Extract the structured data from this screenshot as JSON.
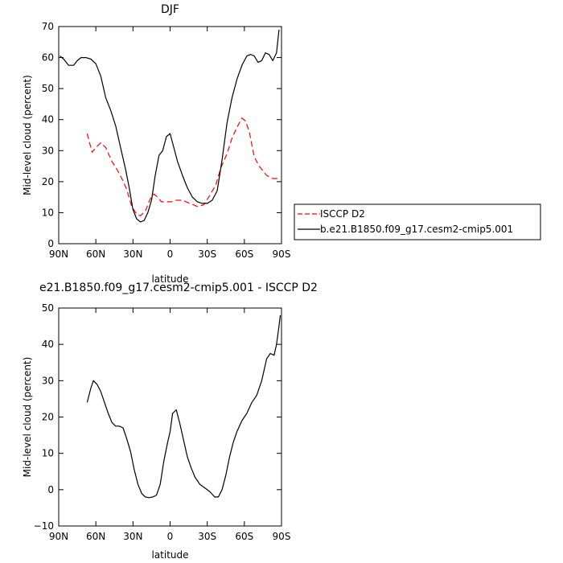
{
  "chart_data": [
    {
      "type": "line",
      "title": "DJF",
      "xlabel": "latitude",
      "ylabel": "Mid-level cloud (percent)",
      "xlim": [
        90,
        -90
      ],
      "ylim": [
        0,
        70
      ],
      "xticks": [
        90,
        60,
        30,
        0,
        -30,
        -60,
        -90
      ],
      "xtick_labels": [
        "90N",
        "60N",
        "30N",
        "0",
        "30S",
        "60S",
        "90S"
      ],
      "yticks": [
        0,
        10,
        20,
        30,
        40,
        50,
        60,
        70
      ],
      "ytick_labels": [
        "0",
        "10",
        "20",
        "30",
        "40",
        "50",
        "60",
        "70"
      ],
      "legend": "right",
      "series": [
        {
          "name": "ISCCP D2",
          "color": "#ff0000",
          "dash": "dashed",
          "x": [
            67,
            63,
            60,
            56,
            52,
            47,
            43,
            39,
            35,
            31,
            27,
            24,
            20,
            16,
            13,
            10,
            7,
            4,
            1,
            -1,
            -5,
            -10,
            -16,
            -22,
            -27,
            -32,
            -37,
            -41,
            -46,
            -50,
            -54,
            -58,
            -61,
            -64,
            -68,
            -72,
            -78,
            -83,
            -88
          ],
          "y": [
            35.5,
            29.5,
            31,
            32.5,
            31,
            26.5,
            24,
            21,
            17.5,
            12,
            9.5,
            9,
            10.5,
            14.5,
            16,
            15,
            13.5,
            13.5,
            13.5,
            13.5,
            14,
            14,
            13,
            12,
            12.5,
            15.5,
            19,
            24.5,
            29,
            34,
            37.5,
            40.5,
            39.5,
            36,
            28,
            25,
            22,
            21,
            21
          ]
        },
        {
          "name": "b.e21.B1850.f09_g17.cesm2-cmip5.001",
          "color": "#000000",
          "dash": "solid",
          "x": [
            89,
            86,
            82,
            78,
            75,
            72,
            68,
            64,
            60,
            56,
            52,
            48,
            44,
            40,
            36,
            33,
            30,
            27,
            24,
            21,
            18,
            15,
            12,
            9,
            6,
            3,
            0,
            -3,
            -6,
            -10,
            -14,
            -18,
            -22,
            -26,
            -30,
            -34,
            -38,
            -42,
            -46,
            -50,
            -54,
            -58,
            -62,
            -65,
            -68,
            -71,
            -74,
            -77,
            -80,
            -83,
            -86,
            -88
          ],
          "y": [
            60.5,
            59.5,
            57.5,
            57.5,
            59,
            60,
            60,
            59.5,
            58,
            54,
            47,
            43,
            38,
            31,
            24,
            18,
            11,
            8,
            7,
            7.5,
            10,
            14,
            22,
            28.5,
            30,
            34.5,
            35.5,
            31,
            26.5,
            22,
            18,
            15,
            13.5,
            13,
            13,
            14,
            17,
            27,
            39,
            47,
            53,
            57.5,
            60.5,
            61,
            60.5,
            58.5,
            59,
            61.5,
            61,
            59,
            61.5,
            69
          ]
        }
      ]
    },
    {
      "type": "line",
      "title": "e21.B1850.f09_g17.cesm2-cmip5.001 - ISCCP D2",
      "xlabel": "latitude",
      "ylabel": "Mid-level cloud (percent)",
      "xlim": [
        90,
        -90
      ],
      "ylim": [
        -10,
        50
      ],
      "xticks": [
        90,
        60,
        30,
        0,
        -30,
        -60,
        -90
      ],
      "xtick_labels": [
        "90N",
        "60N",
        "30N",
        "0",
        "30S",
        "60S",
        "90S"
      ],
      "yticks": [
        -10,
        0,
        10,
        20,
        30,
        40,
        50
      ],
      "ytick_labels": [
        "−10",
        "0",
        "10",
        "20",
        "30",
        "40",
        "50"
      ],
      "series": [
        {
          "color": "#000000",
          "dash": "solid",
          "x": [
            67,
            64,
            62,
            59,
            56,
            53,
            50,
            47,
            44,
            41,
            38,
            35,
            32,
            29,
            26,
            23,
            20,
            17,
            14,
            11,
            8,
            5,
            2,
            0,
            -2,
            -5,
            -8,
            -11,
            -14,
            -17,
            -20,
            -24,
            -28,
            -32,
            -36,
            -39,
            -42,
            -45,
            -48,
            -51,
            -54,
            -58,
            -62,
            -66,
            -70,
            -74,
            -78,
            -81,
            -84,
            -86,
            -88,
            -89
          ],
          "y": [
            24,
            28,
            30,
            29,
            27,
            24,
            21,
            18.5,
            17.5,
            17.5,
            17,
            14,
            10.5,
            5.5,
            1.5,
            -1,
            -2,
            -2.2,
            -2,
            -1.5,
            1.5,
            8,
            13,
            16,
            21,
            22,
            18,
            13.5,
            9,
            6,
            3.5,
            1.5,
            0.5,
            -0.5,
            -2,
            -2,
            0,
            4,
            9,
            13,
            16,
            19,
            21,
            24,
            26,
            30,
            36,
            37.5,
            37,
            40,
            45,
            48
          ]
        }
      ]
    }
  ]
}
